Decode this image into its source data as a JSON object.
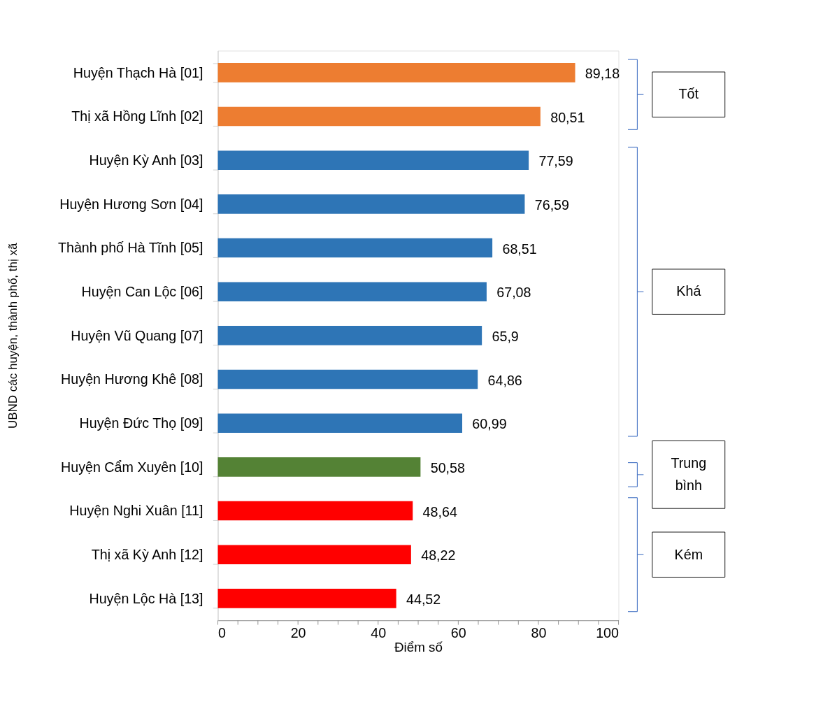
{
  "chart_data": {
    "type": "bar",
    "orientation": "horizontal",
    "xlabel": "Điểm số",
    "ylabel": "UBND các huyện, thành phố, thị xã",
    "categories": [
      "Huyện Thạch Hà [01]",
      "Thị xã Hồng Lĩnh [02]",
      "Huyện Kỳ Anh [03]",
      "Huyện Hương Sơn [04]",
      "Thành phố Hà Tĩnh [05]",
      "Huyện Can Lộc [06]",
      "Huyện Vũ Quang [07]",
      "Huyện Hương Khê [08]",
      "Huyện Đức Thọ [09]",
      "Huyện Cẩm Xuyên [10]",
      "Huyện Nghi Xuân [11]",
      "Thị xã Kỳ Anh [12]",
      "Huyện Lộc Hà [13]"
    ],
    "values": [
      89.18,
      80.51,
      77.59,
      76.59,
      68.51,
      67.08,
      65.9,
      64.86,
      60.99,
      50.58,
      48.64,
      48.22,
      44.52
    ],
    "value_labels": [
      "89,18",
      "80,51",
      "77,59",
      "76,59",
      "68,51",
      "67,08",
      "65,9",
      "64,86",
      "60,99",
      "50,58",
      "48,64",
      "48,22",
      "44,52"
    ],
    "colors": [
      "#ed7d31",
      "#ed7d31",
      "#2e75b6",
      "#2e75b6",
      "#2e75b6",
      "#2e75b6",
      "#2e75b6",
      "#2e75b6",
      "#2e75b6",
      "#548235",
      "#ff0000",
      "#ff0000",
      "#ff0000"
    ],
    "xlim": [
      0,
      100
    ],
    "xticks": [
      0,
      {
        "value": 5,
        "label": null
      },
      {
        "value": 10,
        "label": null
      },
      {
        "value": 15,
        "label": null
      },
      20,
      {
        "value": 25,
        "label": null
      },
      {
        "value": 30,
        "label": null
      },
      {
        "value": 35,
        "label": null
      },
      40,
      {
        "value": 45,
        "label": null
      },
      {
        "value": 50,
        "label": null
      },
      {
        "value": 55,
        "label": null
      },
      60,
      {
        "value": 65,
        "label": null
      },
      {
        "value": 70,
        "label": null
      },
      {
        "value": 75,
        "label": null
      },
      80,
      {
        "value": 85,
        "label": null
      },
      {
        "value": 90,
        "label": null
      },
      {
        "value": 95,
        "label": null
      },
      100
    ],
    "annotations": [
      "Tốt",
      "Khá",
      "Trung bình",
      "Kém"
    ],
    "grid": false,
    "legend": false
  }
}
